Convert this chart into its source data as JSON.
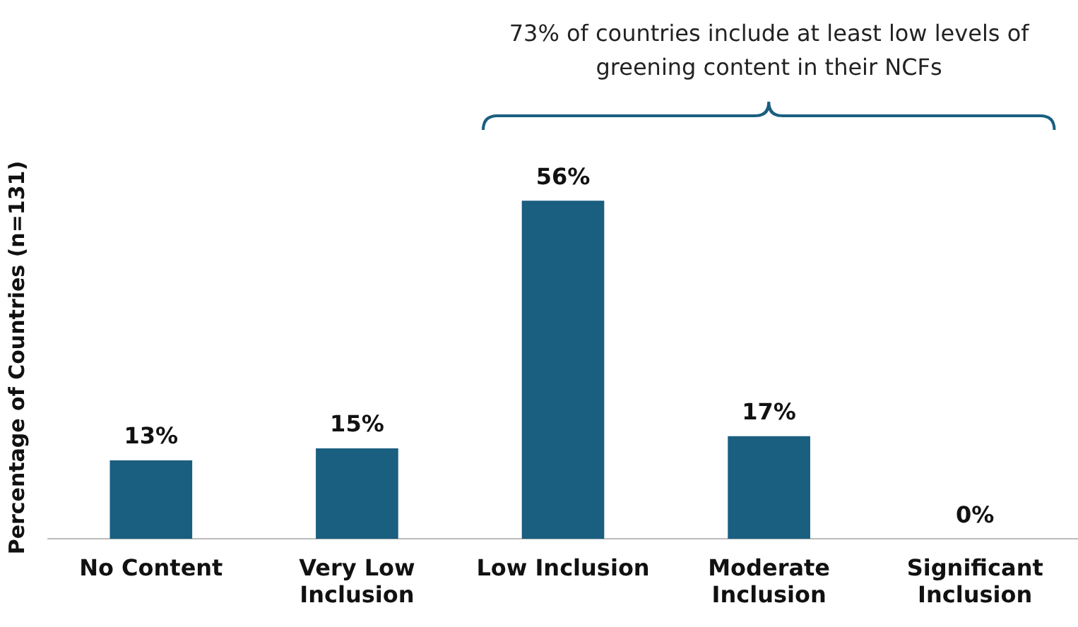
{
  "chart_data": {
    "type": "bar",
    "ylabel": "Percentage of Countries (n=131)",
    "categories": [
      "No Content",
      "Very Low Inclusion",
      "Low Inclusion",
      "Moderate Inclusion",
      "Significant Inclusion"
    ],
    "values": [
      13,
      15,
      56,
      17,
      0
    ],
    "color": "#1a5e80",
    "value_labels": [
      "13%",
      "15%",
      "56%",
      "17%",
      "0%"
    ],
    "annotations": [
      "73% of countries include at least low levels of greening content in their NCFs"
    ],
    "grid": false,
    "legend": false
  }
}
